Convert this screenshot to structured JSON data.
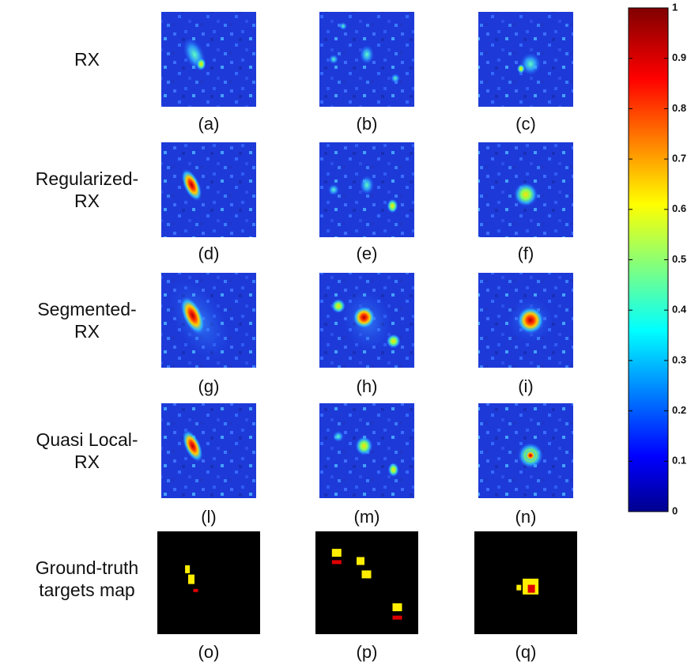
{
  "rows": [
    {
      "label": [
        "RX"
      ],
      "panels": [
        "(a)",
        "(b)",
        "(c)"
      ]
    },
    {
      "label": [
        "Regularized-",
        "RX"
      ],
      "panels": [
        "(d)",
        "(e)",
        "(f)"
      ]
    },
    {
      "label": [
        "Segmented-",
        "RX"
      ],
      "panels": [
        "(g)",
        "(h)",
        "(i)"
      ]
    },
    {
      "label": [
        "Quasi Local-",
        "RX"
      ],
      "panels": [
        "(l)",
        "(m)",
        "(n)"
      ]
    },
    {
      "label": [
        "Ground-truth",
        "targets map"
      ],
      "panels": [
        "(o)",
        "(p)",
        "(q)"
      ]
    }
  ],
  "colorbar": {
    "lim": [
      0,
      1
    ],
    "ticks": [
      0,
      0.1,
      0.2,
      0.3,
      0.4,
      0.5,
      0.6,
      0.7,
      0.8,
      0.9,
      1
    ]
  }
}
